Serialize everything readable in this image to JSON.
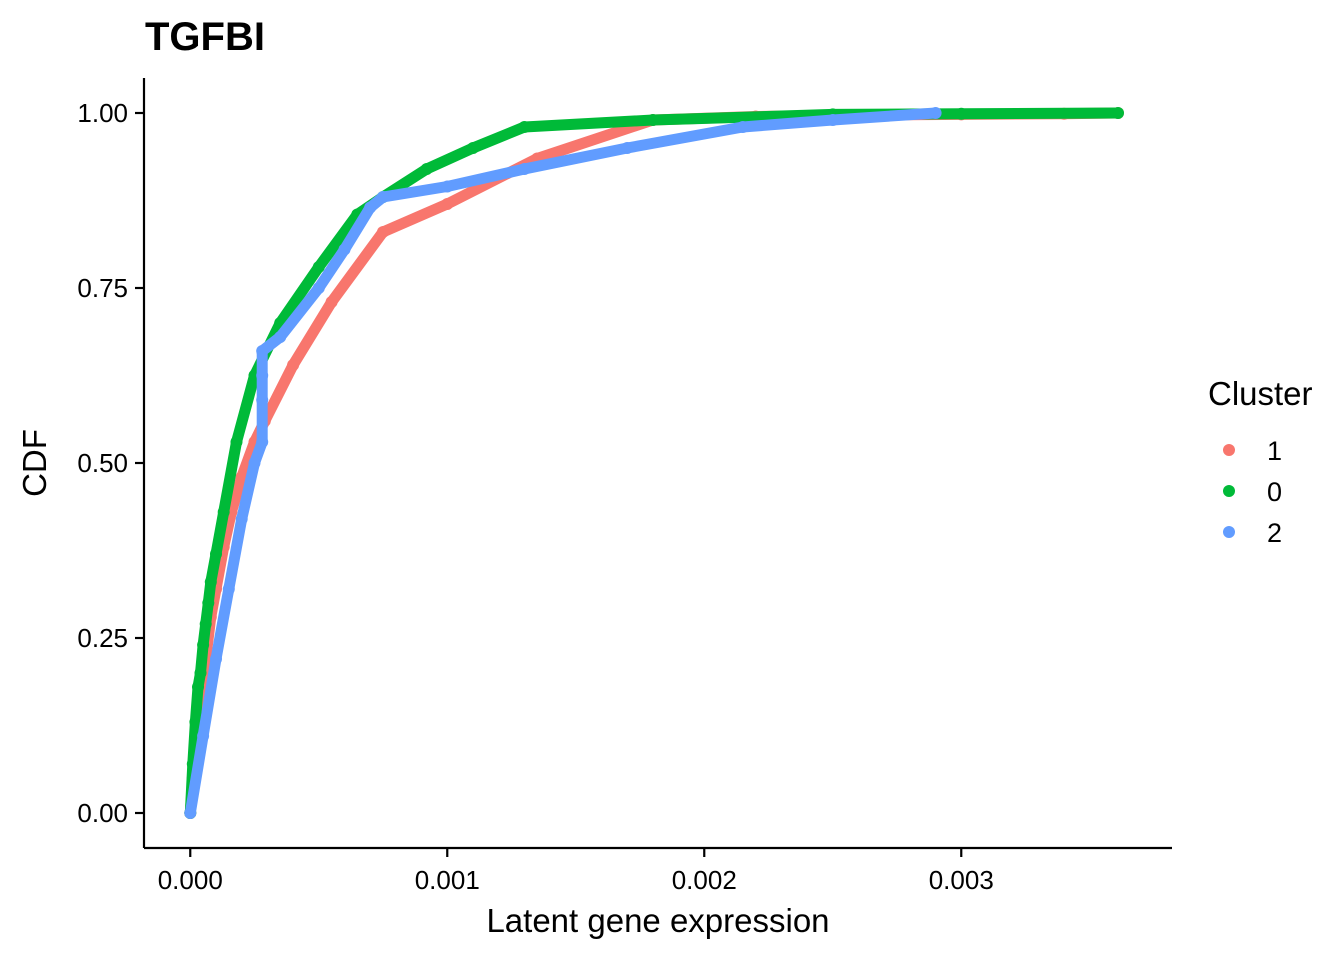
{
  "chart_data": {
    "type": "line",
    "title": "TGFBI",
    "xlabel": "Latent gene expression",
    "ylabel": "CDF",
    "xlim": [
      -0.00018,
      0.00382
    ],
    "ylim": [
      -0.05,
      1.05
    ],
    "xticks": [
      0,
      0.001,
      0.002,
      0.003
    ],
    "xtick_labels": [
      "0.000",
      "0.001",
      "0.002",
      "0.003"
    ],
    "yticks": [
      0,
      0.25,
      0.5,
      0.75,
      1.0
    ],
    "ytick_labels": [
      "0.00",
      "0.25",
      "0.50",
      "0.75",
      "1.00"
    ],
    "grid": false,
    "legend": {
      "title": "Cluster",
      "position": "right"
    },
    "series": [
      {
        "name": "1",
        "color": "#F8766D",
        "x": [
          0,
          1e-05,
          2e-05,
          4e-05,
          6e-05,
          8e-05,
          0.0001,
          0.00013,
          0.00016,
          0.0002,
          0.00025,
          0.00029,
          0.0004,
          0.00055,
          0.00075,
          0.001,
          0.00135,
          0.0018,
          0.0022,
          0.0026,
          0.003,
          0.0034,
          0.00361
        ],
        "y": [
          0,
          0.05,
          0.1,
          0.16,
          0.22,
          0.28,
          0.32,
          0.38,
          0.43,
          0.48,
          0.53,
          0.56,
          0.64,
          0.73,
          0.83,
          0.87,
          0.935,
          0.99,
          0.995,
          0.997,
          0.998,
          0.999,
          1.0
        ]
      },
      {
        "name": "0",
        "color": "#00BA38",
        "x": [
          0,
          1e-05,
          2e-05,
          3e-05,
          4e-05,
          5e-05,
          6e-05,
          7e-05,
          8e-05,
          0.0001,
          0.00013,
          0.00018,
          0.00025,
          0.00035,
          0.0005,
          0.00065,
          0.00075,
          0.00092,
          0.0011,
          0.0013,
          0.0018,
          0.0025,
          0.003,
          0.00361
        ],
        "y": [
          0,
          0.07,
          0.13,
          0.18,
          0.2,
          0.24,
          0.27,
          0.3,
          0.33,
          0.37,
          0.43,
          0.53,
          0.625,
          0.7,
          0.78,
          0.855,
          0.88,
          0.92,
          0.95,
          0.98,
          0.99,
          0.998,
          0.999,
          1.0
        ]
      },
      {
        "name": "2",
        "color": "#619CFF",
        "x": [
          0,
          5e-05,
          0.0001,
          0.00015,
          0.0002,
          0.00025,
          0.00028,
          0.00028,
          0.00028,
          0.00028,
          0.00035,
          0.0005,
          0.0006,
          0.0007,
          0.00075,
          0.001,
          0.0013,
          0.0017,
          0.00215,
          0.0025,
          0.0029
        ],
        "y": [
          0,
          0.11,
          0.22,
          0.32,
          0.42,
          0.5,
          0.53,
          0.59,
          0.625,
          0.66,
          0.68,
          0.75,
          0.805,
          0.865,
          0.88,
          0.895,
          0.92,
          0.95,
          0.98,
          0.99,
          1.0
        ]
      }
    ]
  }
}
